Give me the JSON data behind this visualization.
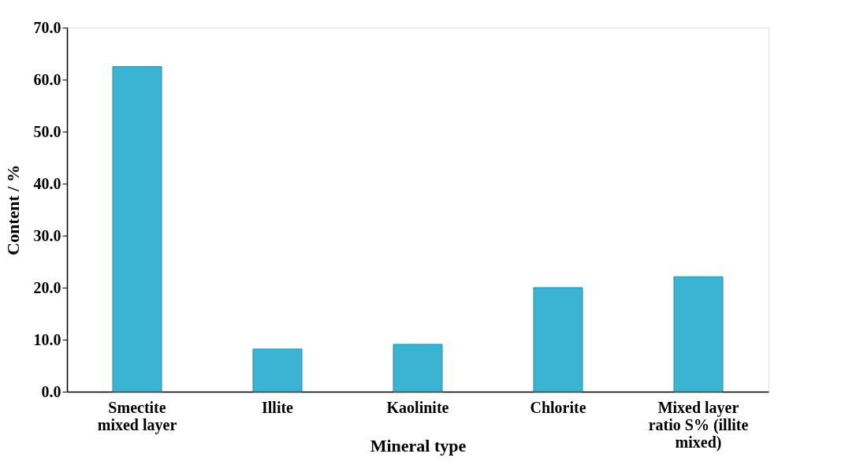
{
  "chart_data": {
    "type": "bar",
    "xlabel": "Mineral type",
    "ylabel": "Content / %",
    "categories": [
      "Smectite\nmixed layer",
      "Illite",
      "Kaolinite",
      "Chlorite",
      "Mixed layer\nratio S% (illite\nmixed)"
    ],
    "values": [
      62.5,
      8.2,
      9.1,
      20.0,
      22.1
    ],
    "color": "#3ab4d2",
    "ylim": [
      0,
      70
    ],
    "yticks": [
      {
        "value": 0,
        "label": "0.0"
      },
      {
        "value": 10,
        "label": "10.0"
      },
      {
        "value": 20,
        "label": "20.0"
      },
      {
        "value": 30,
        "label": "30.0"
      },
      {
        "value": 40,
        "label": "40.0"
      },
      {
        "value": 50,
        "label": "50.0"
      },
      {
        "value": 60,
        "label": "60.0"
      },
      {
        "value": 70,
        "label": "70.0"
      }
    ],
    "grid": false
  }
}
